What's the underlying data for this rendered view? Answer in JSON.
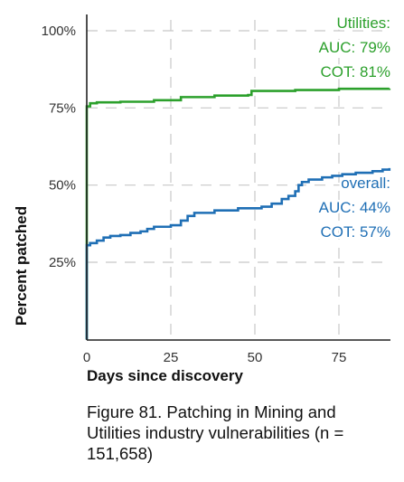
{
  "chart_data": {
    "type": "line",
    "xlabel": "Days since discovery",
    "ylabel": "Percent patched",
    "xlim": [
      0,
      90
    ],
    "ylim": [
      0,
      105
    ],
    "xticks": [
      0,
      25,
      50,
      75
    ],
    "xtick_labels": [
      "0",
      "25",
      "50",
      "75"
    ],
    "yticks": [
      25,
      50,
      75,
      100
    ],
    "ytick_labels": [
      "25%",
      "50%",
      "75%",
      "100%"
    ],
    "grid": true,
    "series": [
      {
        "name": "Utilities",
        "color": "#2ca02c",
        "annotation": [
          "Utilities:",
          "AUC: 79%",
          "COT: 81%"
        ],
        "points": [
          [
            0,
            0
          ],
          [
            0,
            75.5
          ],
          [
            1,
            76.5
          ],
          [
            3,
            76.8
          ],
          [
            10,
            77.0
          ],
          [
            20,
            77.5
          ],
          [
            28,
            78.5
          ],
          [
            38,
            79.0
          ],
          [
            48,
            79.2
          ],
          [
            49,
            80.5
          ],
          [
            62,
            80.8
          ],
          [
            75,
            81.2
          ],
          [
            90,
            81.3
          ]
        ]
      },
      {
        "name": "overall",
        "color": "#1f6fb5",
        "annotation": [
          "overall:",
          "AUC: 44%",
          "COT: 57%"
        ],
        "points": [
          [
            0,
            0
          ],
          [
            0,
            30.5
          ],
          [
            1,
            31.2
          ],
          [
            3,
            32.0
          ],
          [
            5,
            33.0
          ],
          [
            7,
            33.5
          ],
          [
            10,
            33.8
          ],
          [
            13,
            34.5
          ],
          [
            16,
            35.0
          ],
          [
            18,
            35.8
          ],
          [
            20,
            36.5
          ],
          [
            25,
            37.0
          ],
          [
            28,
            38.5
          ],
          [
            30,
            40.0
          ],
          [
            32,
            41.0
          ],
          [
            38,
            41.8
          ],
          [
            45,
            42.5
          ],
          [
            52,
            43.0
          ],
          [
            55,
            44.0
          ],
          [
            58,
            45.5
          ],
          [
            60,
            46.5
          ],
          [
            62,
            48.0
          ],
          [
            63,
            50.0
          ],
          [
            64,
            51.0
          ],
          [
            66,
            51.8
          ],
          [
            70,
            52.5
          ],
          [
            73,
            53.0
          ],
          [
            76,
            53.5
          ],
          [
            80,
            54.0
          ],
          [
            85,
            54.5
          ],
          [
            88,
            55.0
          ],
          [
            90,
            55.5
          ]
        ]
      }
    ]
  },
  "caption": "Figure 81. Patching in Mining and Utilities industry vulnerabilities (n = 151,658)"
}
